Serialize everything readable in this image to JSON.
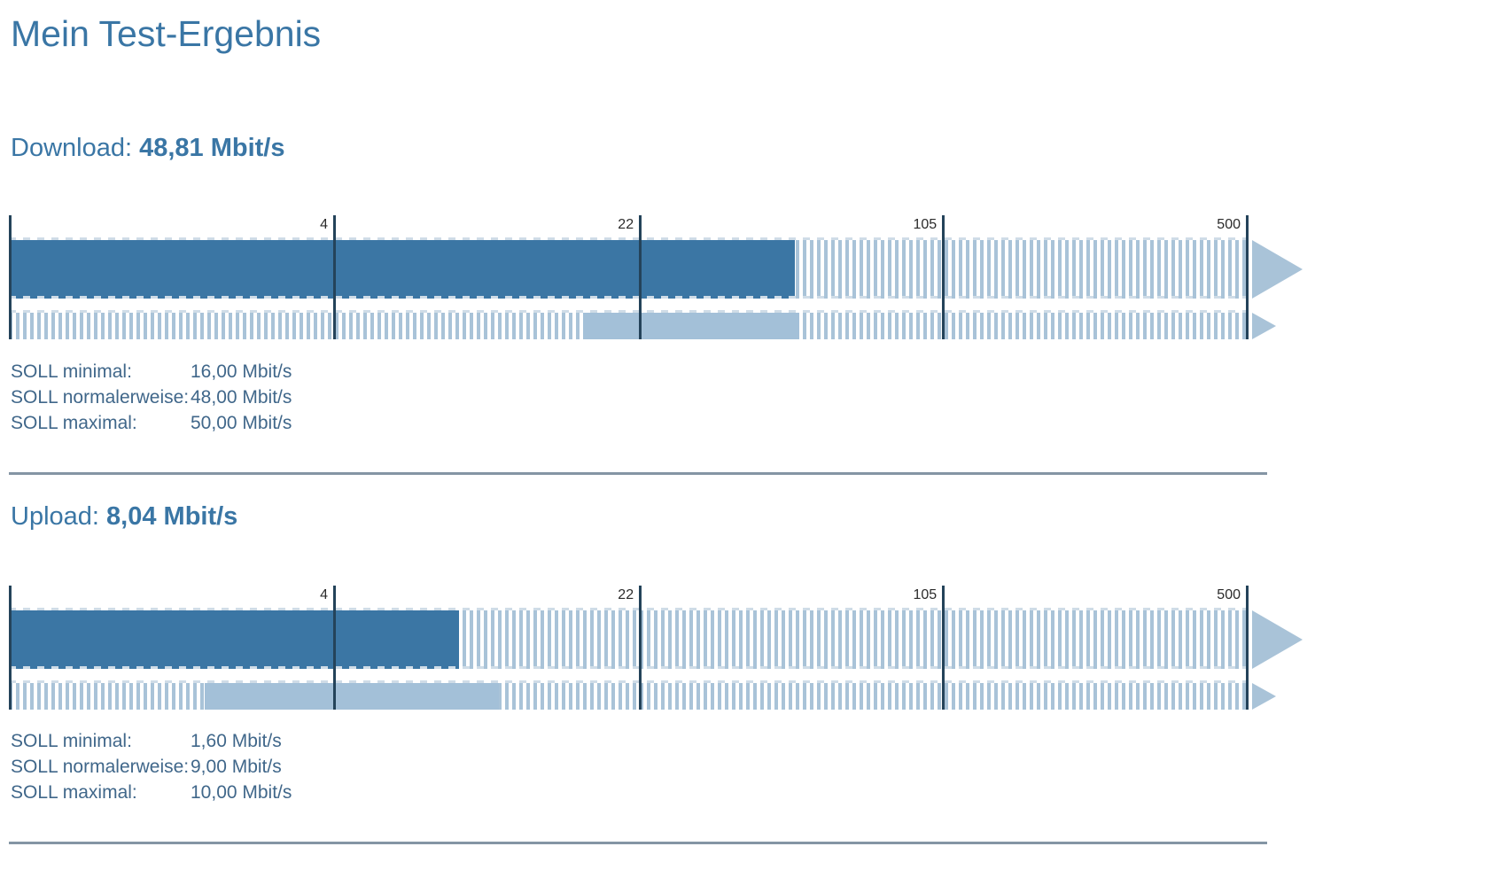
{
  "page": {
    "title": "Mein Test-Ergebnis"
  },
  "scale": {
    "unit": "Mbit/s",
    "min": 0,
    "max": 500,
    "ticks": [
      {
        "value": 4,
        "label": "4"
      },
      {
        "value": 22,
        "label": "22"
      },
      {
        "value": 105,
        "label": "105"
      },
      {
        "value": 500,
        "label": "500"
      }
    ]
  },
  "sections": [
    {
      "id": "download",
      "heading_label": "Download:",
      "heading_value": "48,81 Mbit/s",
      "measured_mbit": 48.81,
      "soll_min_mbit": 16.0,
      "soll_normal_mbit": 48.0,
      "soll_max_mbit": 50.0,
      "soll": [
        {
          "label": "SOLL minimal:",
          "value": "16,00 Mbit/s"
        },
        {
          "label": "SOLL normalerweise:",
          "value": "48,00 Mbit/s"
        },
        {
          "label": "SOLL maximal:",
          "value": "50,00 Mbit/s"
        }
      ]
    },
    {
      "id": "upload",
      "heading_label": "Upload:",
      "heading_value": "8,04 Mbit/s",
      "measured_mbit": 8.04,
      "soll_min_mbit": 1.6,
      "soll_normal_mbit": 9.0,
      "soll_max_mbit": 10.0,
      "soll": [
        {
          "label": "SOLL minimal:",
          "value": "1,60 Mbit/s"
        },
        {
          "label": "SOLL normalerweise:",
          "value": "9,00 Mbit/s"
        },
        {
          "label": "SOLL maximal:",
          "value": "10,00 Mbit/s"
        }
      ]
    }
  ],
  "colors": {
    "accent_blue": "#3a76a5",
    "measured_bar": "#3b76a4",
    "stripe_light": "#a9c3d8",
    "soll_band": "#a3c0d8",
    "tick_line": "#24435a",
    "tick_label": "#2b2b2b",
    "soll_text": "#40678a",
    "divider": "#8495a4"
  }
}
